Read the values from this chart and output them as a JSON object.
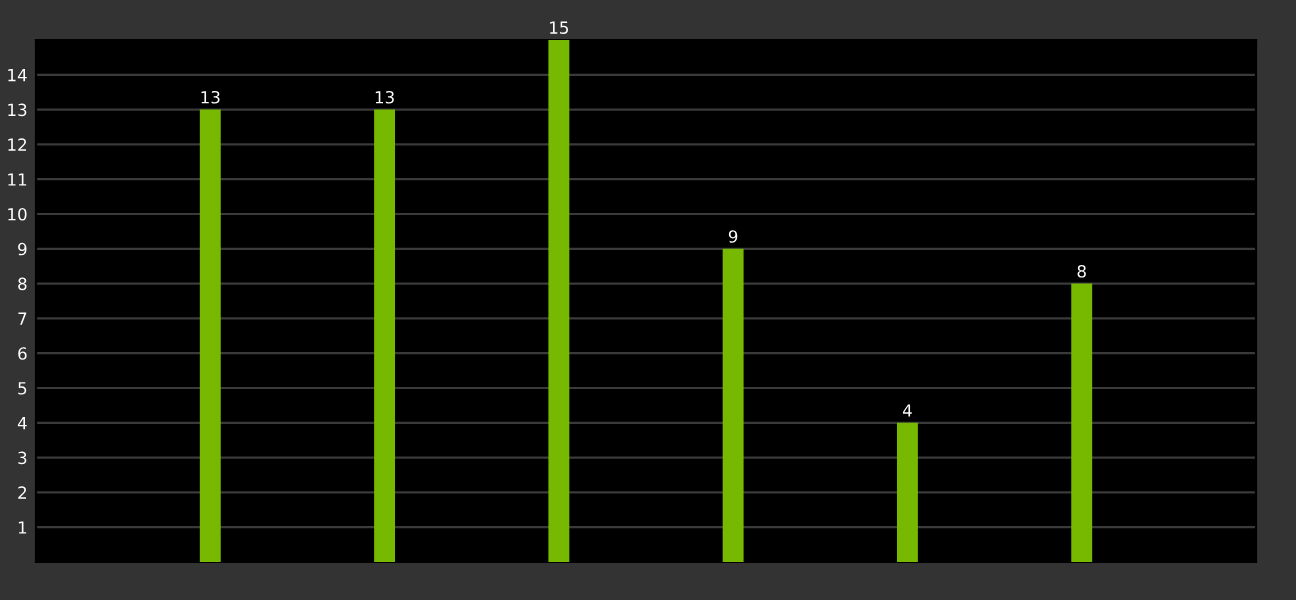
{
  "chart_data": {
    "type": "bar",
    "categories": [
      null,
      null,
      null,
      null,
      null,
      null
    ],
    "values": [
      13,
      13,
      15,
      9,
      4,
      8
    ],
    "color": "#76b900",
    "data_labels": true,
    "ylim": [
      0,
      15
    ],
    "yticks": [
      1,
      2,
      3,
      4,
      5,
      6,
      7,
      8,
      9,
      10,
      11,
      12,
      13,
      14
    ],
    "tick_labels": "y",
    "grid": "y",
    "legend": false
  }
}
